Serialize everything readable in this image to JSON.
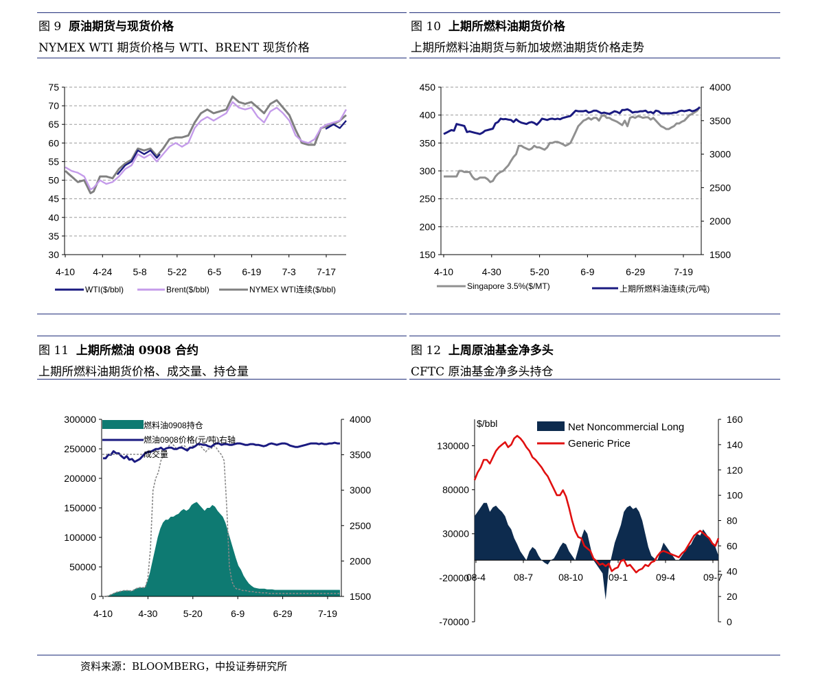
{
  "footer": "资料来源：BLOOMBERG，中投证券研究所",
  "panels": [
    {
      "fig_label": "图 9",
      "title": "原油期货与现货价格",
      "subtitle": "NYMEX WTI 期货价格与 WTI、BRENT 现货价格"
    },
    {
      "fig_label": "图 10",
      "title": "上期所燃料油期货价格",
      "subtitle": "上期所燃料油期货与新加坡燃油期货价格走势"
    },
    {
      "fig_label": "图 11",
      "title": "上期所燃油 0908 合约",
      "subtitle": "上期所燃料油期货价格、成交量、持仓量"
    },
    {
      "fig_label": "图 12",
      "title": "上周原油基金净多头",
      "subtitle": "CFTC  原油基金净多头持仓"
    }
  ],
  "chart_data": [
    {
      "type": "line",
      "x_ticks": [
        "4-10",
        "4-24",
        "5-8",
        "5-22",
        "6-5",
        "6-19",
        "7-3",
        "7-17"
      ],
      "ylim": [
        30,
        75
      ],
      "y_ticks": [
        "30",
        "35",
        "40",
        "45",
        "50",
        "55",
        "60",
        "65",
        "70",
        "75"
      ],
      "grid": true,
      "legend_position": "bottom",
      "series": [
        {
          "name": "WTI($/bbl)",
          "color": "#1a1a80",
          "values": [
            null,
            null,
            null,
            null,
            null,
            null,
            null,
            null,
            null,
            null,
            null,
            null,
            null,
            null,
            null,
            null,
            null,
            null,
            null,
            null,
            null,
            null,
            null,
            null,
            null,
            null,
            null,
            null,
            null,
            null,
            null,
            null,
            null,
            null,
            null,
            null,
            null,
            null,
            null,
            null,
            null,
            null,
            null,
            null,
            null,
            null,
            null,
            null,
            null,
            null,
            null,
            null,
            null,
            null,
            null,
            null,
            null,
            null,
            null,
            null,
            null,
            null,
            null,
            null,
            null,
            null,
            null,
            null,
            null,
            null,
            null,
            null,
            null,
            null,
            null,
            null,
            null,
            null,
            null,
            null,
            null,
            null,
            null,
            null,
            null,
            null,
            null,
            null,
            null,
            null,
            null,
            null,
            null,
            null,
            null,
            null,
            null,
            null,
            null,
            null,
            null,
            null,
            null,
            null,
            null,
            null,
            null,
            null,
            null,
            null,
            null,
            null,
            null,
            null,
            null,
            null,
            null,
            null,
            null,
            null,
            null,
            null,
            null,
            null,
            null,
            null,
            null,
            null,
            null,
            null,
            null,
            null,
            null,
            null,
            null,
            null,
            null,
            null,
            null,
            null,
            null,
            null,
            null,
            null,
            null,
            null,
            null,
            null,
            null,
            null,
            null,
            null,
            null,
            null,
            null,
            null,
            null,
            null,
            null,
            null,
            null,
            null,
            null,
            null,
            null,
            null,
            null,
            null,
            null,
            null,
            null,
            null,
            null,
            null,
            null,
            null,
            null,
            null,
            null,
            null,
            null,
            null,
            null,
            null,
            null,
            null,
            null,
            null,
            null,
            null,
            null,
            null,
            null,
            null,
            null,
            null,
            null,
            null,
            null,
            null
          ]
        },
        {
          "name": "Brent($/bbl)",
          "color": "#c49bea",
          "values": []
        },
        {
          "name": "NYMEX WTI连续($/bbl)",
          "color": "#808080",
          "values": []
        }
      ]
    },
    {
      "type": "line",
      "x_ticks": [
        "4-10",
        "4-30",
        "5-20",
        "6-9",
        "6-29",
        "7-19"
      ],
      "ylim_left": [
        150,
        450
      ],
      "y_ticks_left": [
        "150",
        "200",
        "250",
        "300",
        "350",
        "400",
        "450"
      ],
      "ylim_right": [
        1500,
        4000
      ],
      "y_ticks_right": [
        "1500",
        "2000",
        "2500",
        "3000",
        "3500",
        "4000"
      ],
      "legend_position": "bottom",
      "series": [
        {
          "name": "Singapore 3.5%($/MT)",
          "color": "#909090",
          "axis": "left",
          "values": [
            290,
            290,
            290,
            290,
            290,
            290,
            300,
            300,
            298,
            298,
            298,
            290,
            285,
            285,
            288,
            288,
            288,
            285,
            280,
            282,
            290,
            295,
            298,
            300,
            305,
            310,
            318,
            325,
            330,
            345,
            345,
            342,
            340,
            338,
            340,
            345,
            342,
            342,
            340,
            338,
            342,
            350,
            350,
            352,
            352,
            350,
            348,
            345,
            347,
            350,
            360,
            370,
            380,
            385,
            390,
            392,
            395,
            392,
            395,
            395,
            390,
            398,
            400,
            395,
            395,
            392,
            390,
            388,
            385,
            382,
            390,
            380,
            395,
            397,
            395,
            398,
            397,
            395,
            396,
            396,
            392,
            395,
            390,
            385,
            380,
            378,
            375,
            375,
            378,
            380,
            385,
            385,
            388,
            390,
            395,
            400,
            402,
            405,
            408,
            415
          ]
        },
        {
          "name": "上期所燃料油连续(元/吨)",
          "color": "#1a1a80",
          "axis": "right",
          "values": [
            3300,
            3320,
            3340,
            3360,
            3350,
            3450,
            3440,
            3430,
            3420,
            3330,
            3340,
            3330,
            3320,
            3310,
            3300,
            3320,
            3350,
            3360,
            3370,
            3380,
            3460,
            3480,
            3530,
            3520,
            3525,
            3515,
            3510,
            3480,
            3520,
            3490,
            3470,
            3460,
            3450,
            3470,
            3480,
            3465,
            3440,
            3480,
            3530,
            3520,
            3510,
            3525,
            3530,
            3520,
            3530,
            3520,
            3540,
            3550,
            3560,
            3570,
            3610,
            3650,
            3640,
            3640,
            3640,
            3650,
            3620,
            3630,
            3650,
            3650,
            3630,
            3610,
            3620,
            3610,
            3600,
            3620,
            3640,
            3630,
            3610,
            3660,
            3660,
            3670,
            3650,
            3620,
            3630,
            3630,
            3640,
            3640,
            3650,
            3620,
            3630,
            3610,
            3650,
            3640,
            3610,
            3610,
            3610,
            3610,
            3610,
            3620,
            3620,
            3640,
            3650,
            3640,
            3650,
            3660,
            3640,
            3650,
            3670,
            3700
          ]
        }
      ]
    },
    {
      "type": "area",
      "x_ticks": [
        "4-10",
        "4-30",
        "5-20",
        "6-9",
        "6-29",
        "7-19"
      ],
      "ylim_left": [
        0,
        300000
      ],
      "y_ticks_left": [
        "0",
        "50000",
        "100000",
        "150000",
        "200000",
        "250000",
        "300000"
      ],
      "ylim_right": [
        1500,
        4000
      ],
      "y_ticks_right": [
        "1500",
        "2000",
        "2500",
        "3000",
        "3500",
        "4000"
      ],
      "legend_position": "top-left",
      "series": [
        {
          "name": "燃料油0908持仓",
          "color": "#0e7a72",
          "axis": "left",
          "values": [
            0,
            0,
            1000,
            3000,
            5000,
            7000,
            8000,
            9000,
            10000,
            10000,
            10000,
            9000,
            12000,
            14000,
            15000,
            15000,
            15000,
            25000,
            40000,
            60000,
            80000,
            100000,
            115000,
            125000,
            130000,
            130000,
            135000,
            135000,
            138000,
            140000,
            145000,
            148000,
            145000,
            148000,
            155000,
            158000,
            160000,
            155000,
            150000,
            145000,
            150000,
            150000,
            155000,
            152000,
            145000,
            140000,
            135000,
            125000,
            110000,
            95000,
            80000,
            65000,
            52000,
            45000,
            35000,
            28000,
            22000,
            18000,
            15000,
            14000,
            13000,
            13000,
            13000,
            12000,
            12000,
            12000,
            11000,
            11000,
            11000,
            11000,
            11000,
            11000,
            11000,
            11000,
            11000,
            11000,
            11000,
            11000,
            11000,
            11000,
            11000,
            11000,
            11000,
            11000,
            11000,
            11000,
            11000,
            11000,
            11000,
            11000,
            11000,
            11000
          ]
        },
        {
          "name": "燃油0908价格(元/吨)右轴",
          "color": "#1a1a80",
          "axis": "right",
          "values": [
            3450,
            3450,
            3500,
            3500,
            3550,
            3520,
            3520,
            3480,
            3450,
            3480,
            3430,
            3440,
            3400,
            3420,
            3440,
            3480,
            3520,
            3540,
            3540,
            3560,
            3580,
            3580,
            3600,
            3570,
            3590,
            3600,
            3600,
            3580,
            3580,
            3600,
            3600,
            3580,
            3560,
            3600,
            3600,
            3620,
            3650,
            3650,
            3640,
            3640,
            3620,
            3610,
            3640,
            3660,
            3660,
            3640,
            3650,
            3650,
            3640,
            3640,
            3650,
            3660,
            3660,
            3650,
            3640,
            3640,
            3650,
            3650,
            3640,
            3640,
            3630,
            3620,
            3630,
            3650,
            3660,
            3650,
            3640,
            3650,
            3660,
            3660,
            3650,
            3630,
            3620,
            3610,
            3610,
            3620,
            3630,
            3640,
            3650,
            3660,
            3660,
            3660,
            3650,
            3660,
            3650,
            3650,
            3660,
            3660,
            3670,
            3660,
            3660
          ]
        },
        {
          "name": "成交量",
          "color": "#888888",
          "axis": "left",
          "style": "dotted",
          "values": [
            0,
            0,
            1000,
            3000,
            5000,
            7000,
            8000,
            9000,
            10000,
            10000,
            10000,
            9000,
            12000,
            14000,
            15000,
            15000,
            15000,
            30000,
            80000,
            180000,
            200000,
            210000,
            230000,
            240000,
            250000,
            255000,
            260000,
            255000,
            250000,
            252000,
            255000,
            255000,
            250000,
            252000,
            255000,
            255000,
            258000,
            255000,
            250000,
            245000,
            250000,
            250000,
            255000,
            252000,
            245000,
            240000,
            230000,
            150000,
            50000,
            25000,
            15000,
            12000,
            12000,
            10000,
            10000,
            9000,
            8000,
            8000,
            7000,
            7000,
            6000,
            6000,
            6000,
            5000,
            5000,
            5000,
            5000,
            5000,
            5000,
            5000,
            5000,
            5000,
            5000,
            5000,
            5000,
            5000,
            5000,
            5000,
            5000,
            5000,
            5000,
            5000,
            5000,
            5000,
            5000,
            5000,
            5000,
            5000,
            5000,
            5000,
            5000
          ]
        }
      ]
    },
    {
      "type": "area",
      "x_ticks": [
        "08-4",
        "08-7",
        "08-10",
        "09-1",
        "09-4",
        "09-7"
      ],
      "left_unit": "$/bbl",
      "ylim_left": [
        -70000,
        160000
      ],
      "y_ticks_left": [
        "-70000",
        "-20000",
        "30000",
        "80000",
        "130000"
      ],
      "ylim_right": [
        0,
        160
      ],
      "y_ticks_right": [
        "0",
        "20",
        "40",
        "60",
        "80",
        "100",
        "120",
        "140",
        "160"
      ],
      "legend_position": "top",
      "series": [
        {
          "name": "Net Noncommercial Long",
          "color": "#0d2b4e",
          "axis": "left",
          "values": [
            50000,
            55000,
            60000,
            65000,
            65000,
            55000,
            60000,
            62000,
            58000,
            55000,
            50000,
            40000,
            35000,
            25000,
            18000,
            10000,
            5000,
            0,
            10000,
            15000,
            12000,
            5000,
            0,
            -3000,
            -5000,
            0,
            2000,
            8000,
            15000,
            20000,
            18000,
            10000,
            5000,
            0,
            12000,
            25000,
            35000,
            30000,
            15000,
            0,
            -5000,
            -10000,
            -15000,
            -45000,
            -10000,
            5000,
            20000,
            30000,
            40000,
            55000,
            60000,
            62000,
            58000,
            60000,
            55000,
            45000,
            30000,
            15000,
            5000,
            2000,
            0,
            10000,
            20000,
            15000,
            10000,
            5000,
            0,
            0,
            5000,
            10000,
            15000,
            18000,
            25000,
            30000,
            28000,
            35000,
            30000,
            25000,
            20000,
            15000,
            5000
          ]
        },
        {
          "name": "Generic Price",
          "color": "#e01010",
          "axis": "right",
          "values": [
            112,
            118,
            122,
            128,
            128,
            125,
            130,
            135,
            138,
            140,
            142,
            138,
            140,
            145,
            147,
            145,
            142,
            138,
            135,
            130,
            128,
            125,
            122,
            118,
            115,
            110,
            105,
            100,
            100,
            104,
            99,
            90,
            80,
            72,
            67,
            66,
            60,
            58,
            56,
            50,
            48,
            45,
            46,
            44,
            46,
            40,
            42,
            43,
            48,
            49,
            44,
            45,
            42,
            39,
            41,
            42,
            45,
            44,
            47,
            48,
            52,
            55,
            56,
            55,
            54,
            53,
            52,
            51,
            54,
            56,
            60,
            64,
            68,
            70,
            72,
            70,
            68,
            66,
            62,
            60,
            66
          ]
        }
      ]
    }
  ]
}
